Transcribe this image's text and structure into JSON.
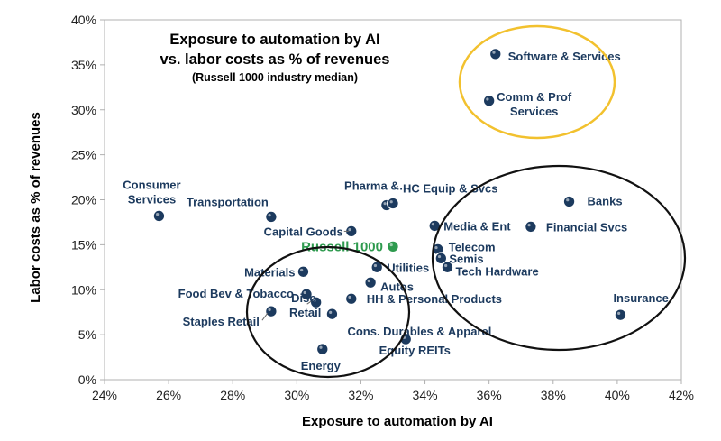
{
  "chart_data": {
    "type": "scatter",
    "title": "Exposure to automation by AI",
    "subtitle": "vs. labor costs as % of revenues",
    "note": "(Russell 1000 industry median)",
    "xlabel": "Exposure to automation by AI",
    "ylabel": "Labor costs as % of revenues",
    "xlim": [
      24,
      42
    ],
    "ylim": [
      0,
      40
    ],
    "x_ticks": [
      24,
      26,
      28,
      30,
      32,
      34,
      36,
      38,
      40,
      42
    ],
    "y_ticks": [
      0,
      5,
      10,
      15,
      20,
      25,
      30,
      35,
      40
    ],
    "x_tick_labels": [
      "24%",
      "26%",
      "28%",
      "30%",
      "32%",
      "34%",
      "36%",
      "38%",
      "40%",
      "42%"
    ],
    "y_tick_labels": [
      "0%",
      "5%",
      "10%",
      "15%",
      "20%",
      "25%",
      "30%",
      "35%",
      "40%"
    ],
    "grid": false,
    "colors": {
      "point": "#1c3a5e",
      "point_highlight": "#2e9a4e",
      "label": "#1c3a5e",
      "label_highlight": "#2e9a4e",
      "circle_yellow": "#f2c12e",
      "circle_black": "#111111",
      "axis": "#b0b0b0"
    },
    "points": [
      {
        "name": "Software & Services",
        "x": 36.2,
        "y": 36.2
      },
      {
        "name": "Comm & Prof Services",
        "x": 36.0,
        "y": 31.0
      },
      {
        "name": "Consumer Services",
        "x": 25.7,
        "y": 18.2
      },
      {
        "name": "Transportation",
        "x": 29.2,
        "y": 18.1
      },
      {
        "name": "Pharma &…",
        "x": 32.8,
        "y": 19.4
      },
      {
        "name": "HC Equip & Svcs",
        "x": 33.0,
        "y": 19.6
      },
      {
        "name": "Banks",
        "x": 38.5,
        "y": 19.8
      },
      {
        "name": "Capital Goods",
        "x": 31.7,
        "y": 16.5
      },
      {
        "name": "Media & Ent",
        "x": 34.3,
        "y": 17.1
      },
      {
        "name": "Financial Svcs",
        "x": 37.3,
        "y": 17.0
      },
      {
        "name": "Russell 1000",
        "x": 33.0,
        "y": 14.8,
        "highlight": true
      },
      {
        "name": "Telecom",
        "x": 34.4,
        "y": 14.5
      },
      {
        "name": "Semis",
        "x": 34.5,
        "y": 13.5
      },
      {
        "name": "Tech Hardware",
        "x": 34.7,
        "y": 12.5
      },
      {
        "name": "Materials",
        "x": 30.2,
        "y": 12.0
      },
      {
        "name": "Utilities",
        "x": 32.5,
        "y": 12.5
      },
      {
        "name": "Autos",
        "x": 32.3,
        "y": 10.8
      },
      {
        "name": "Food Bev & Tobacco",
        "x": 30.3,
        "y": 9.5
      },
      {
        "name": "HH & Personal Products",
        "x": 31.7,
        "y": 9.0
      },
      {
        "name": "Disc. Retail",
        "x": 30.6,
        "y": 8.6
      },
      {
        "name": "Staples Retail",
        "x": 29.2,
        "y": 7.6
      },
      {
        "name": "Cons. Durables & Apparel",
        "x": 31.1,
        "y": 7.3
      },
      {
        "name": "Insurance",
        "x": 40.1,
        "y": 7.2
      },
      {
        "name": "Equity REITs",
        "x": 33.4,
        "y": 4.5
      },
      {
        "name": "Energy",
        "x": 30.8,
        "y": 3.4
      }
    ]
  }
}
